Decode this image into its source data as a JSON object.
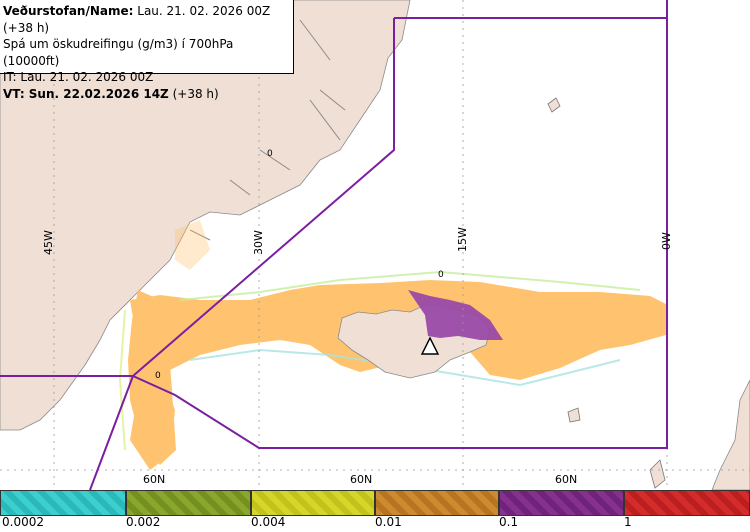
{
  "info": {
    "line1_label": "Veðurstofan/Name:",
    "line1_value": "Lau. 21. 02. 2026 00Z (+38 h)",
    "line2": "Spá um öskudreifingu (g/m3) í 700hPa (10000ft)",
    "line3": "IT: Lau. 21. 02. 2026 00Z",
    "line4_label": "VT: Sun. 22.02.2026 14Z",
    "line4_value": "(+38 h)"
  },
  "grid_labels": {
    "lon_45w": "45W",
    "lon_30w": "30W",
    "lon_15w": "15W",
    "lon_0w": "0W",
    "lat_60n_a": "60N",
    "lat_60n_b": "60N",
    "lat_60n_c": "60N"
  },
  "map_marks": {
    "zero_a": "0",
    "zero_b": "0",
    "zero_c": "0"
  },
  "legend": {
    "ticks": [
      "0.0002",
      "0.002",
      "0.004",
      "0.01",
      "0.1",
      "1"
    ],
    "colors": [
      "#3ccfd0",
      "#8aa62c",
      "#d6d62a",
      "#cd8a2e",
      "#86308f",
      "#d42b2b"
    ]
  },
  "colors": {
    "land": "#efdfd5",
    "ash_low": "#ffbe63",
    "ash_high": "#9a4aa8",
    "boundary": "#7b1fa2"
  }
}
